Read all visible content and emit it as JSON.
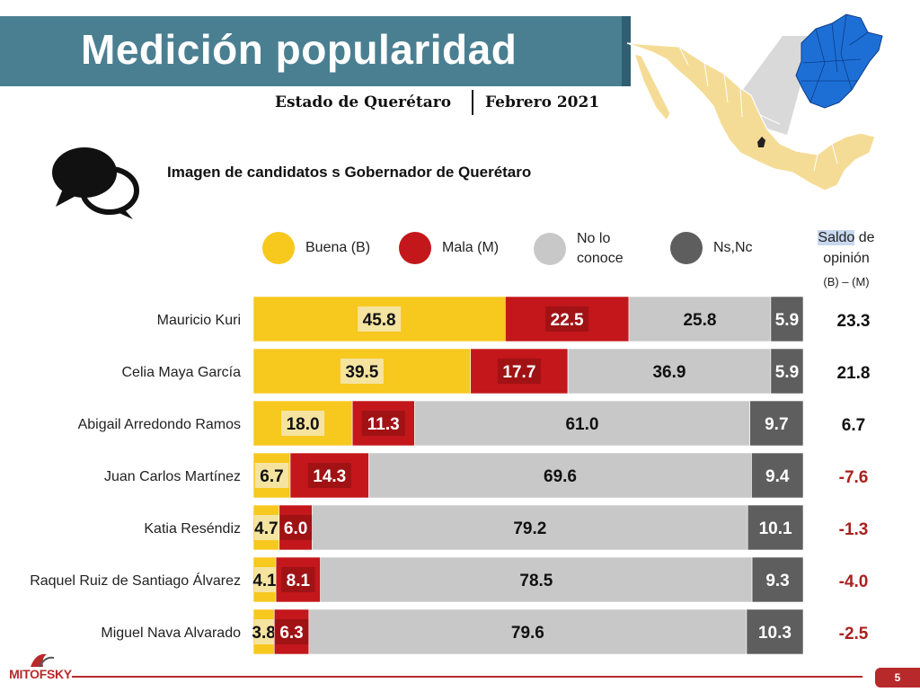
{
  "header": {
    "title": "Medición popularidad",
    "state": "Estado de Querétaro",
    "date": "Febrero 2021",
    "band_color": "#4a7f91"
  },
  "logo": {
    "text": "MITOFSKY"
  },
  "page_number": "5",
  "saldo": {
    "head_highlight": "Saldo",
    "head_rest": " de",
    "head_line2": "opinión",
    "formula": "(B) – (M)"
  },
  "colors": {
    "buena": "#f7c81e",
    "mala": "#c3171b",
    "no_conoce": "#c8c8c8",
    "nsnc": "#5e5e5e",
    "saldo_positive": "#111111",
    "saldo_negative": "#a8211f"
  },
  "chart_data": {
    "type": "bar",
    "orientation": "horizontal",
    "stacked": true,
    "title": "Imagen de candidatos s Gobernador de Querétaro",
    "legend": [
      {
        "key": "buena",
        "line1": "Buena (B)",
        "line2": ""
      },
      {
        "key": "mala",
        "line1": "Mala (M)",
        "line2": ""
      },
      {
        "key": "no_conoce",
        "line1": "No lo",
        "line2": "conoce"
      },
      {
        "key": "nsnc",
        "line1": "Ns,Nc",
        "line2": ""
      }
    ],
    "legend_position": "top",
    "categories": [
      "Mauricio Kuri",
      "Celia Maya García",
      "Abigail Arredondo Ramos",
      "Juan Carlos Martínez",
      "Katia Reséndiz",
      "Raquel Ruiz de Santiago Álvarez",
      "Miguel Nava Alvarado"
    ],
    "series": [
      {
        "key": "buena",
        "values": [
          45.8,
          39.5,
          18.0,
          6.7,
          4.7,
          4.1,
          3.8
        ],
        "labels": [
          "45.8",
          "39.5",
          "18.0",
          "6.7",
          "4.7",
          "4.1",
          "3.8"
        ]
      },
      {
        "key": "mala",
        "values": [
          22.5,
          17.7,
          11.3,
          14.3,
          6.0,
          8.1,
          6.3
        ],
        "labels": [
          "22.5",
          "17.7",
          "11.3",
          "14.3",
          "6.0",
          "8.1",
          "6.3"
        ]
      },
      {
        "key": "no_conoce",
        "values": [
          25.8,
          36.9,
          61.0,
          69.6,
          79.2,
          78.5,
          79.6
        ],
        "labels": [
          "25.8",
          "36.9",
          "61.0",
          "69.6",
          "79.2",
          "78.5",
          "79.6"
        ]
      },
      {
        "key": "nsnc",
        "values": [
          5.9,
          5.9,
          9.7,
          9.4,
          10.1,
          9.3,
          10.3
        ],
        "labels": [
          "5.9",
          "5.9",
          "9.7",
          "9.4",
          "10.1",
          "9.3",
          "10.3"
        ]
      }
    ],
    "saldo_values": [
      23.3,
      21.8,
      6.7,
      -7.6,
      -1.3,
      -4.0,
      -2.5
    ],
    "saldo_labels": [
      "23.3",
      "21.8",
      "6.7",
      "-7.6",
      "-1.3",
      "-4.0",
      "-2.5"
    ],
    "xlim": [
      0,
      100
    ],
    "grid": false
  }
}
